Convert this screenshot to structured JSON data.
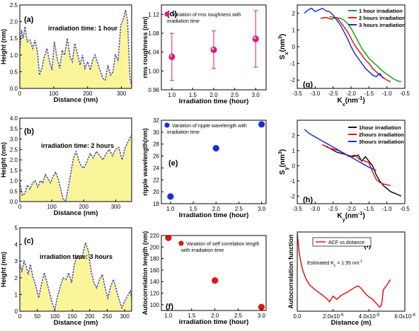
{
  "figure": {},
  "chart_data": [
    {
      "id": "a",
      "type": "area",
      "panel_label": "(a)",
      "annotation": "irradiation time: 1 hour",
      "xlabel": "Distance (nm)",
      "ylabel": "Height (nm)",
      "xlim": [
        0,
        330
      ],
      "ylim": [
        0,
        2.5
      ],
      "xticks": [
        0,
        100,
        200,
        300
      ],
      "yticks": [
        0.0,
        0.5,
        1.0,
        1.5,
        2.0,
        2.5
      ],
      "xtick_labels": [
        "0",
        "100",
        "200",
        "300"
      ],
      "ytick_labels": [
        "0.0",
        "0.5",
        "1.0",
        "1.5",
        "2.0",
        "2.5"
      ],
      "x": [
        0,
        5,
        10,
        15,
        22,
        30,
        38,
        45,
        52,
        58,
        65,
        72,
        80,
        88,
        95,
        102,
        110,
        118,
        125,
        132,
        140,
        148,
        155,
        162,
        170,
        178,
        185,
        192,
        200,
        208,
        215,
        222,
        230,
        238,
        245,
        252,
        260,
        268,
        275,
        282,
        290,
        298,
        305,
        312,
        318,
        325,
        330
      ],
      "y": [
        1.2,
        1.75,
        1.5,
        1.85,
        1.4,
        1.45,
        1.2,
        1.45,
        1.1,
        0.4,
        0.6,
        0.95,
        1.2,
        0.8,
        0.55,
        1.4,
        0.9,
        0.6,
        1.15,
        1.0,
        1.5,
        0.95,
        0.8,
        1.35,
        1.05,
        0.7,
        1.0,
        0.6,
        0.8,
        0.55,
        0.85,
        1.0,
        0.75,
        0.5,
        0.3,
        0.25,
        0.7,
        0.4,
        0.5,
        1.0,
        0.85,
        1.9,
        2.05,
        2.35,
        2.0,
        0.3,
        0.1
      ]
    },
    {
      "id": "b",
      "type": "area",
      "panel_label": "(b)",
      "annotation": "irradiation time: 2 hours",
      "xlabel": "Distance (nm)",
      "ylabel": "Height (nm)",
      "xlim": [
        0,
        350
      ],
      "ylim": [
        0,
        4.0
      ],
      "xticks": [
        0,
        100,
        200,
        300
      ],
      "yticks": [
        0.0,
        0.5,
        1.0,
        1.5,
        2.0,
        2.5,
        3.0,
        3.5,
        4.0
      ],
      "xtick_labels": [
        "0",
        "100",
        "200",
        "300"
      ],
      "ytick_labels": [
        "0.0",
        "0.5",
        "1.0",
        "1.5",
        "2.0",
        "2.5",
        "3.0",
        "3.5",
        "4.0"
      ],
      "x": [
        0,
        8,
        16,
        24,
        32,
        40,
        48,
        56,
        64,
        72,
        80,
        88,
        96,
        104,
        112,
        120,
        128,
        136,
        144,
        152,
        160,
        168,
        176,
        184,
        192,
        200,
        210,
        220,
        230,
        240,
        250,
        260,
        270,
        280,
        290,
        300,
        310,
        320,
        330,
        340,
        350
      ],
      "y": [
        0.9,
        0.3,
        0.4,
        0.8,
        0.6,
        0.9,
        1.0,
        0.7,
        1.0,
        0.9,
        1.3,
        1.1,
        0.9,
        1.2,
        1.4,
        1.1,
        0.6,
        0.1,
        0.05,
        0.7,
        1.4,
        2.1,
        2.4,
        2.0,
        1.7,
        1.6,
        1.9,
        2.3,
        2.1,
        2.4,
        2.2,
        2.0,
        2.3,
        2.5,
        2.2,
        2.5,
        2.6,
        2.0,
        2.6,
        2.9,
        3.2
      ]
    },
    {
      "id": "c",
      "type": "area",
      "panel_label": "(c)",
      "annotation": "irradiation time: 3 hours",
      "xlabel": "Distance (nm)",
      "ylabel": "Height (nm)",
      "xlim": [
        0,
        320
      ],
      "ylim": [
        0,
        5
      ],
      "xticks": [
        0,
        50,
        100,
        150,
        200,
        250,
        300
      ],
      "yticks": [
        0,
        1,
        2,
        3,
        4,
        5
      ],
      "xtick_labels": [
        "0",
        "50",
        "100",
        "150",
        "200",
        "250",
        "300"
      ],
      "ytick_labels": [
        "0",
        "1",
        "2",
        "3",
        "4",
        "5"
      ],
      "x": [
        0,
        6,
        12,
        18,
        24,
        30,
        38,
        46,
        54,
        62,
        70,
        78,
        86,
        94,
        100,
        108,
        116,
        124,
        132,
        140,
        148,
        156,
        164,
        172,
        180,
        188,
        196,
        204,
        212,
        220,
        228,
        236,
        244,
        252,
        260,
        268,
        276,
        284,
        292,
        300,
        308,
        316,
        320
      ],
      "y": [
        2.8,
        2.4,
        3.0,
        2.7,
        2.2,
        2.8,
        2.0,
        1.5,
        0.8,
        1.6,
        2.3,
        1.7,
        1.0,
        0.4,
        0.1,
        0.9,
        1.5,
        2.0,
        1.9,
        2.3,
        1.7,
        2.8,
        3.3,
        3.1,
        3.4,
        4.1,
        3.6,
        2.4,
        1.7,
        1.4,
        1.9,
        2.2,
        1.4,
        0.8,
        1.5,
        1.9,
        1.3,
        0.7,
        0.2,
        0.6,
        0.9,
        1.2,
        0.8
      ]
    },
    {
      "id": "d",
      "type": "scatter",
      "panel_label": "(d)",
      "legend": "Variation of rms roughness with irradiation time",
      "xlabel": "Irradiation time (hour)",
      "ylabel": "rms roughness (nm)",
      "xlim": [
        0.75,
        3.25
      ],
      "ylim": [
        0.96,
        1.14
      ],
      "xticks": [
        1.0,
        1.5,
        2.0,
        2.5,
        3.0
      ],
      "yticks": [
        0.96,
        1.0,
        1.04,
        1.08,
        1.12
      ],
      "xtick_labels": [
        "1.0",
        "1.5",
        "2.0",
        "2.5",
        "3.0"
      ],
      "ytick_labels": [
        "0.96",
        "1.00",
        "1.04",
        "1.08",
        "1.12"
      ],
      "x": [
        1.0,
        2.0,
        3.0
      ],
      "y": [
        1.03,
        1.045,
        1.068
      ],
      "yerr": [
        0.05,
        0.04,
        0.06
      ],
      "color": "#e0197c"
    },
    {
      "id": "e",
      "type": "scatter",
      "panel_label": "(e)",
      "legend": "Variation of ripple wavelength with irradiation time",
      "xlabel": "Irradiation time (hour)",
      "ylabel": "ripple wavelength(nm)",
      "xlim": [
        0.8,
        3.1
      ],
      "ylim": [
        18,
        32
      ],
      "xticks": [
        1.0,
        1.5,
        2.0,
        2.5,
        3.0
      ],
      "yticks": [
        18,
        20,
        22,
        24,
        26,
        28,
        30,
        32
      ],
      "xtick_labels": [
        "1.0",
        "1.5",
        "2.0",
        "2.5",
        "3.0"
      ],
      "ytick_labels": [
        "18",
        "20",
        "22",
        "24",
        "26",
        "28",
        "30",
        "32"
      ],
      "x": [
        1.0,
        2.0,
        3.0
      ],
      "y": [
        19.2,
        27.3,
        31.3
      ],
      "color": "#1a2fd6"
    },
    {
      "id": "f",
      "type": "scatter",
      "panel_label": "(f)",
      "legend": "Variation of self correlation length with irradiation time",
      "xlabel": "irradiation time (hour)",
      "ylabel": "Autocorrelation length (nm)",
      "xlim": [
        0.85,
        3.1
      ],
      "ylim": [
        90,
        220
      ],
      "xticks": [
        1.0,
        1.5,
        2.0,
        2.5,
        3.0
      ],
      "yticks": [
        100,
        120,
        140,
        160,
        180,
        200,
        220
      ],
      "xtick_labels": [
        "1.0",
        "1.5",
        "2.0",
        "2.5",
        "3.0"
      ],
      "ytick_labels": [
        "100",
        "120",
        "140",
        "160",
        "180",
        "200",
        "220"
      ],
      "x": [
        1.0,
        2.0,
        3.0
      ],
      "y": [
        216,
        142,
        96
      ],
      "color": "#e01515"
    },
    {
      "id": "g",
      "type": "line",
      "panel_label": "(g)",
      "xlabel": "Kx(nm-1)",
      "ylabel": "Sx(nm3)",
      "xlim": [
        -3.5,
        -0.5
      ],
      "ylim": [
        -2.5,
        2.5
      ],
      "xticks": [
        -3.5,
        -3.0,
        -2.5,
        -2.0,
        -1.5,
        -1.0,
        -0.5
      ],
      "yticks": [
        -2,
        -1,
        0,
        1,
        2
      ],
      "xtick_labels": [
        "-3.5",
        "-3.0",
        "-2.5",
        "-2.0",
        "-1.5",
        "-1.0",
        "-0.5"
      ],
      "ytick_labels": [
        "-2",
        "-1",
        "0",
        "1",
        "2"
      ],
      "series": [
        {
          "name": "1 hour irradiation",
          "color": "#15a015",
          "x": [
            -2.6,
            -2.45,
            -2.3,
            -2.2,
            -2.1,
            -2.0,
            -1.9,
            -1.8,
            -1.7,
            -1.6,
            -1.5,
            -1.4,
            -1.3,
            -1.2,
            -1.1,
            -1.0,
            -0.9,
            -0.8,
            -0.7,
            -0.6
          ],
          "y": [
            1.8,
            1.75,
            1.7,
            1.6,
            1.4,
            1.1,
            0.7,
            0.3,
            -0.1,
            -0.4,
            -0.7,
            -0.9,
            -1.1,
            -1.3,
            -1.5,
            -1.65,
            -1.8,
            -1.95,
            -2.05,
            -2.1
          ]
        },
        {
          "name": "2 hours irradiation",
          "color": "#e01515",
          "x": [
            -2.85,
            -2.7,
            -2.55,
            -2.4,
            -2.3,
            -2.2,
            -2.1,
            -2.0,
            -1.9,
            -1.8,
            -1.7,
            -1.6,
            -1.5,
            -1.4,
            -1.3,
            -1.2,
            -1.1,
            -1.0,
            -0.9
          ],
          "y": [
            1.7,
            1.75,
            1.65,
            1.75,
            1.5,
            1.2,
            0.9,
            0.5,
            0.1,
            -0.2,
            -0.5,
            -0.8,
            -1.0,
            -1.3,
            -1.5,
            -1.7,
            -1.85,
            -2.0,
            -2.1
          ]
        },
        {
          "name": "3 hours irradiation",
          "color": "#1a2fd6",
          "x": [
            -3.3,
            -3.2,
            -3.1,
            -3.0,
            -2.9,
            -2.8,
            -2.7,
            -2.6,
            -2.5,
            -2.4,
            -2.3,
            -2.2,
            -2.1,
            -2.0,
            -1.9,
            -1.8,
            -1.7,
            -1.6,
            -1.5,
            -1.4,
            -1.3,
            -1.2,
            -1.1
          ],
          "y": [
            2.0,
            2.2,
            2.3,
            2.1,
            2.2,
            2.3,
            2.15,
            2.1,
            1.9,
            1.6,
            1.3,
            0.9,
            0.5,
            0.0,
            -0.4,
            -0.7,
            -1.0,
            -1.3,
            -1.5,
            -1.7,
            -1.8,
            -1.6,
            -1.9
          ]
        }
      ]
    },
    {
      "id": "h",
      "type": "line",
      "panel_label": "(h)",
      "xlabel": "Ky(nm-1)",
      "ylabel": "Sy(nm3)",
      "xlim": [
        -3.5,
        -0.5
      ],
      "ylim": [
        -2.5,
        3.0
      ],
      "xticks": [
        -3.5,
        -3.0,
        -2.5,
        -2.0,
        -1.5,
        -1.0,
        -0.5
      ],
      "yticks": [
        -2,
        -1,
        0,
        1,
        2
      ],
      "xtick_labels": [
        "-3.5",
        "-3.0",
        "-2.5",
        "-2.0",
        "-1.5",
        "-1.0",
        "-0.5"
      ],
      "ytick_labels": [
        "-2",
        "-1",
        "0",
        "1",
        "2"
      ],
      "series": [
        {
          "name": "1hour irradiation",
          "color": "#111111",
          "x": [
            -2.7,
            -2.55,
            -2.4,
            -2.25,
            -2.1,
            -1.95,
            -1.8,
            -1.7,
            -1.6,
            -1.5,
            -1.4,
            -1.3,
            -1.2,
            -1.1,
            -1.0,
            -0.9,
            -0.8,
            -0.7,
            -0.6
          ],
          "y": [
            1.3,
            1.1,
            0.9,
            0.8,
            0.7,
            0.6,
            0.7,
            0.3,
            0.6,
            0.3,
            0.0,
            -0.6,
            -1.0,
            -1.3,
            -1.5,
            -1.7,
            -1.8,
            -1.9,
            -2.0
          ]
        },
        {
          "name": "2hours irradiation",
          "color": "#e01515",
          "x": [
            -2.8,
            -2.65,
            -2.5,
            -2.35,
            -2.2,
            -2.05,
            -1.9,
            -1.75,
            -1.6,
            -1.5,
            -1.4,
            -1.3,
            -1.2,
            -1.1,
            -1.0,
            -0.9
          ],
          "y": [
            1.4,
            1.2,
            1.1,
            1.0,
            0.8,
            0.6,
            0.7,
            0.4,
            0.3,
            0.2,
            -0.4,
            -0.9,
            -1.1,
            -1.2,
            -1.25,
            -1.3
          ]
        },
        {
          "name": "3hours irradiation",
          "color": "#1a2fd6",
          "x": [
            -3.3,
            -3.15,
            -3.0,
            -2.85,
            -2.7,
            -2.55,
            -2.4,
            -2.25,
            -2.1,
            -1.95,
            -1.8,
            -1.65,
            -1.5,
            -1.4,
            -1.3
          ],
          "y": [
            2.4,
            2.1,
            1.9,
            1.7,
            1.5,
            1.3,
            1.1,
            0.9,
            0.7,
            0.5,
            0.3,
            0.1,
            -0.1,
            -0.2,
            -0.3
          ]
        }
      ]
    },
    {
      "id": "i",
      "type": "line",
      "panel_label": "(i)",
      "legend": "ACF vs distance",
      "annotation": "Estimated Kc = 1.95 nm-1",
      "xlabel": "Distance (m)",
      "ylabel": "Autocorrelation function",
      "xlim": [
        0,
        6e-09
      ],
      "ylim": [
        0,
        1
      ],
      "xticks": [
        0,
        2e-09,
        4e-09,
        6e-09
      ],
      "xtick_labels": [
        "0.0",
        "2.0x10-9",
        "4.0x10-9",
        "6.0x10-9"
      ],
      "series": [
        {
          "name": "ACF vs distance",
          "color": "#e01515",
          "x": [
            0,
            1e-10,
            2e-10,
            3e-10,
            5e-10,
            7e-10,
            1e-09,
            1.3e-09,
            1.6e-09,
            1.8e-09,
            2e-09,
            2.2e-09,
            2.4e-09,
            2.6e-09,
            2.8e-09,
            3e-09,
            3.2e-09,
            3.4e-09,
            3.6e-09,
            3.8e-09,
            4e-09,
            4.2e-09,
            4.4e-09,
            4.6e-09,
            4.7e-09,
            4.8e-09,
            5e-09,
            5.2e-09
          ],
          "y": [
            0.98,
            0.75,
            0.62,
            0.52,
            0.4,
            0.33,
            0.27,
            0.22,
            0.17,
            0.12,
            0.19,
            0.15,
            0.19,
            0.22,
            0.24,
            0.27,
            0.3,
            0.32,
            0.28,
            0.22,
            0.18,
            0.15,
            0.1,
            0.05,
            0.08,
            0.27,
            0.33,
            0.4
          ]
        }
      ]
    }
  ]
}
